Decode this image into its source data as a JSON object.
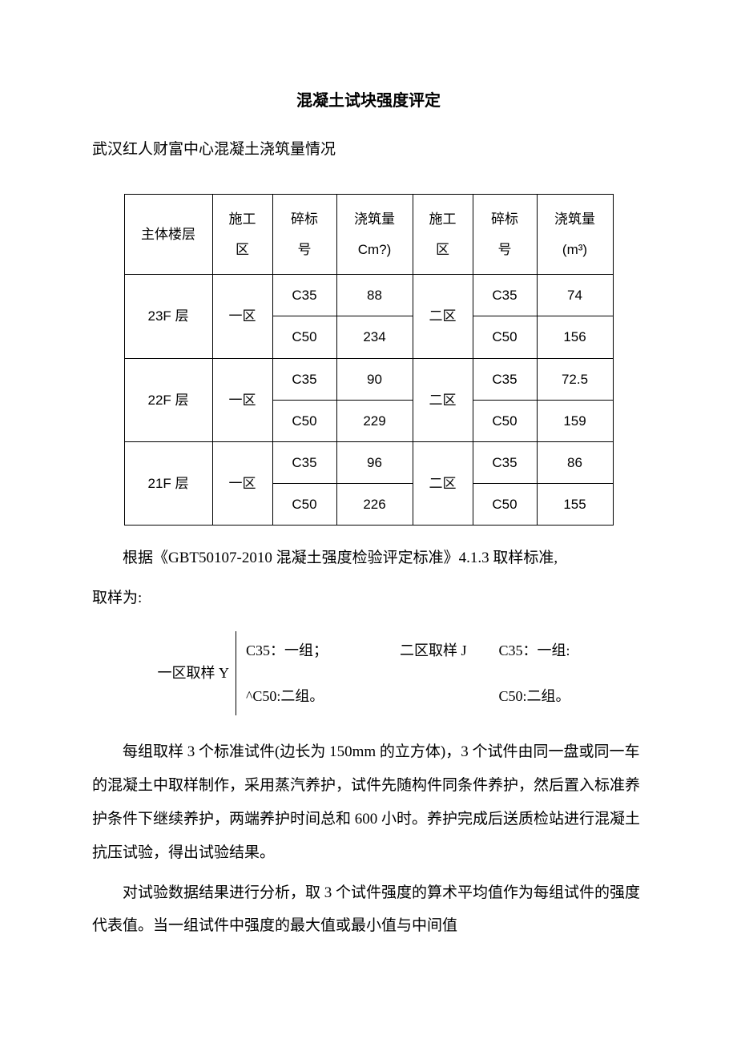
{
  "document": {
    "title": "混凝土试块强度评定",
    "subtitle": "武汉红人财富中心混凝土浇筑量情况",
    "text_color": "#000000",
    "background_color": "#ffffff",
    "border_color": "#000000"
  },
  "table": {
    "type": "table",
    "columns": [
      "主体楼层",
      "施工区",
      "碎标号",
      "浇筑量Cm?)",
      "施工区",
      "碎标号",
      "浇筑量(m³)"
    ],
    "header": {
      "c1": "主体楼层",
      "c2_l1": "施工",
      "c2_l2": "区",
      "c3_l1": "碎标",
      "c3_l2": "号",
      "c4_l1": "浇筑量",
      "c4_l2": "Cm?)",
      "c5_l1": "施工",
      "c5_l2": "区",
      "c6_l1": "碎标",
      "c6_l2": "号",
      "c7_l1": "浇筑量",
      "c7_l2": "(m³)"
    },
    "rows": [
      {
        "floor": "23F 层",
        "zone1": "一区",
        "g1": "C35",
        "v1": "88",
        "zone2": "二区",
        "g2": "C35",
        "v2": "74",
        "g1b": "C50",
        "v1b": "234",
        "g2b": "C50",
        "v2b": "156"
      },
      {
        "floor": "22F 层",
        "zone1": "一区",
        "g1": "C35",
        "v1": "90",
        "zone2": "二区",
        "g2": "C35",
        "v2": "72.5",
        "g1b": "C50",
        "v1b": "229",
        "g2b": "C50",
        "v2b": "159"
      },
      {
        "floor": "21F 层",
        "zone1": "一区",
        "g1": "C35",
        "v1": "96",
        "zone2": "二区",
        "g2": "C35",
        "v2": "86",
        "g1b": "C50",
        "v1b": "226",
        "g2b": "C50",
        "v2b": "155"
      }
    ]
  },
  "after_table": {
    "p1": "根据《GBT50107-2010 混凝土强度检验评定标准》4.1.3 取样标准,",
    "p2": "取样为:"
  },
  "sampling": {
    "left_label": "一区取样 Y",
    "mid_label": "二区取样 J",
    "zone1_c35": "C35：一组；",
    "zone1_c50": "^C50:二组。",
    "zone2_c35": "C35：一组:",
    "zone2_c50": "C50:二组。"
  },
  "body": {
    "p1": "每组取样 3 个标准试件(边长为 150mm 的立方体)，3 个试件由同一盘或同一车的混凝土中取样制作，采用蒸汽养护，试件先随构件同条件养护，然后置入标准养护条件下继续养护，两端养护时间总和 600 小时。养护完成后送质检站进行混凝土抗压试验，得出试验结果。",
    "p2": "对试验数据结果进行分析，取 3 个试件强度的算术平均值作为每组试件的强度代表值。当一组试件中强度的最大值或最小值与中间值"
  }
}
